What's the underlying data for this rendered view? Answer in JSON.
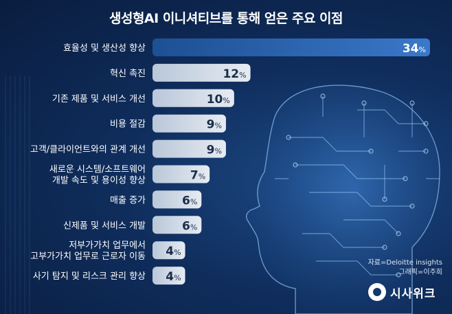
{
  "chart_data": {
    "type": "bar",
    "orientation": "horizontal",
    "title": "생성형AI 이니셔티브를 통해 얻은 주요 이점",
    "categories": [
      "효율성 및 생산성 향상",
      "혁신 촉진",
      "기존 제품 및 서비스 개선",
      "비용 절감",
      "고객/클라이언트와의 관계 개선",
      "새로운 시스템/소프트웨어\n개발 속도 및 용이성 향상",
      "매출 증가",
      "신제품 및 서비스 개발",
      "저부가가치 업무에서\n고부가가치 업무로 근로자 이동",
      "사기 탐지 및 리스크 관리 향상"
    ],
    "values": [
      34,
      12,
      10,
      9,
      9,
      7,
      6,
      6,
      4,
      4
    ],
    "value_suffix": "%",
    "xlim": [
      0,
      34
    ],
    "grid": false,
    "legend": "none",
    "colors": {
      "bar_highlight": "#3a78c9",
      "bar": "#e6ebf2",
      "value_text": "#ffffff"
    }
  },
  "source": "자료=Deloitte insights",
  "credit": "그래픽=이주희",
  "brand": {
    "name": "시사위크",
    "icon": "sisaweek-logo-icon"
  }
}
